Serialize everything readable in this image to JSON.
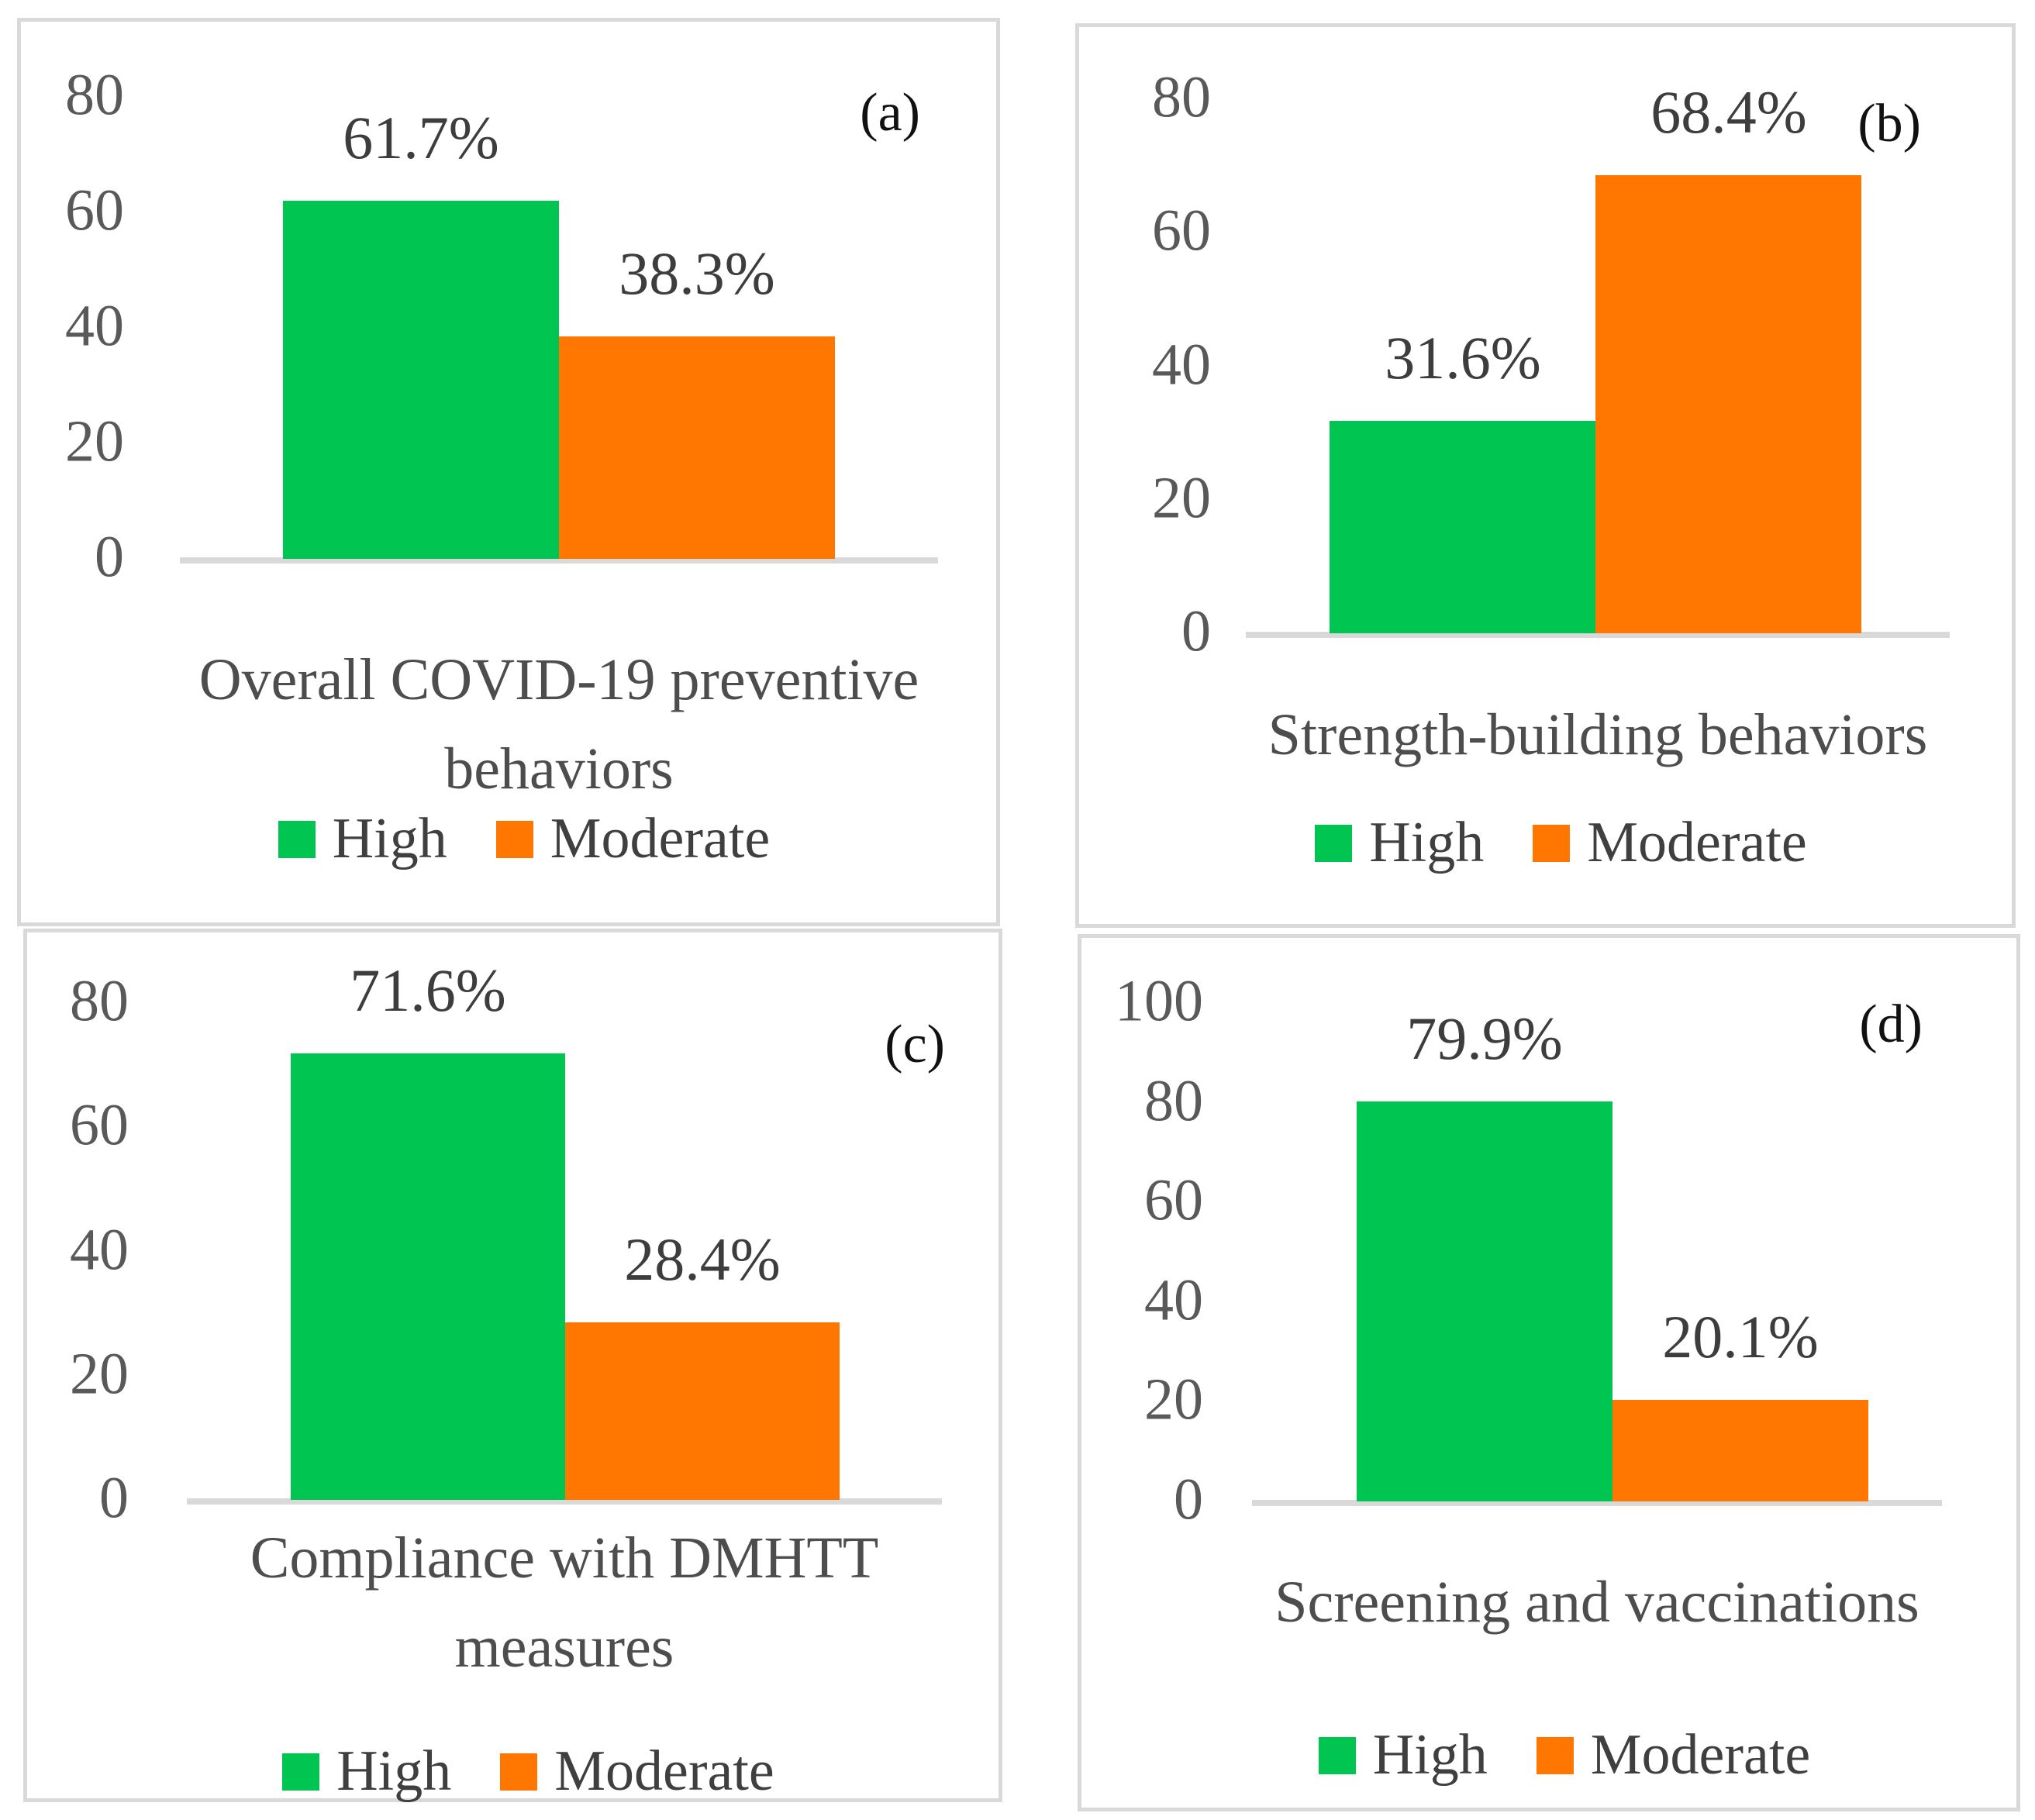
{
  "figure": {
    "legend": {
      "high_label": "High",
      "moderate_label": "Moderate"
    },
    "colors": {
      "high": "#00C551",
      "moderate": "#FF7700",
      "axis_line": "#D9D9D9",
      "panel_border": "#D9D9D9",
      "tick_text": "#595959",
      "data_label_text": "#3D3D3D",
      "title_text": "#4D4D4D",
      "letter_text": "#111111"
    }
  },
  "chart_data": [
    {
      "panel": "a",
      "panel_letter": "(a)",
      "type": "bar",
      "title": "Overall COVID-19 preventive behaviors",
      "title_lines": [
        "Overall COVID-19 preventive",
        "behaviors"
      ],
      "categories": [
        "High",
        "Moderate"
      ],
      "values": [
        61.7,
        38.3
      ],
      "data_labels": [
        "61.7%",
        "38.3%"
      ],
      "ylim": [
        0,
        80
      ],
      "yticks": [
        80,
        60,
        40,
        20,
        0
      ],
      "legend_position": "bottom",
      "grid": false
    },
    {
      "panel": "b",
      "panel_letter": "(b)",
      "type": "bar",
      "title": "Strength-building behaviors",
      "title_lines": [
        "Strength-building behaviors"
      ],
      "categories": [
        "High",
        "Moderate"
      ],
      "values": [
        31.6,
        68.4
      ],
      "data_labels": [
        "31.6%",
        "68.4%"
      ],
      "ylim": [
        0,
        80
      ],
      "yticks": [
        80,
        60,
        40,
        20,
        0
      ],
      "legend_position": "bottom",
      "grid": false
    },
    {
      "panel": "c",
      "panel_letter": "(c)",
      "type": "bar",
      "title": "Compliance with DMHTT measures",
      "title_lines": [
        "Compliance with DMHTT",
        "measures"
      ],
      "categories": [
        "High",
        "Moderate"
      ],
      "values": [
        71.6,
        28.4
      ],
      "data_labels": [
        "71.6%",
        "28.4%"
      ],
      "ylim": [
        0,
        80
      ],
      "yticks": [
        80,
        60,
        40,
        20,
        0
      ],
      "legend_position": "bottom",
      "grid": false
    },
    {
      "panel": "d",
      "panel_letter": "(d)",
      "type": "bar",
      "title": "Screening and vaccinations",
      "title_lines": [
        "Screening and vaccinations"
      ],
      "categories": [
        "High",
        "Moderate"
      ],
      "values": [
        79.9,
        20.1
      ],
      "data_labels": [
        "79.9%",
        "20.1%"
      ],
      "ylim": [
        0,
        100
      ],
      "yticks": [
        100,
        80,
        60,
        40,
        20,
        0
      ],
      "legend_position": "bottom",
      "grid": false
    }
  ]
}
